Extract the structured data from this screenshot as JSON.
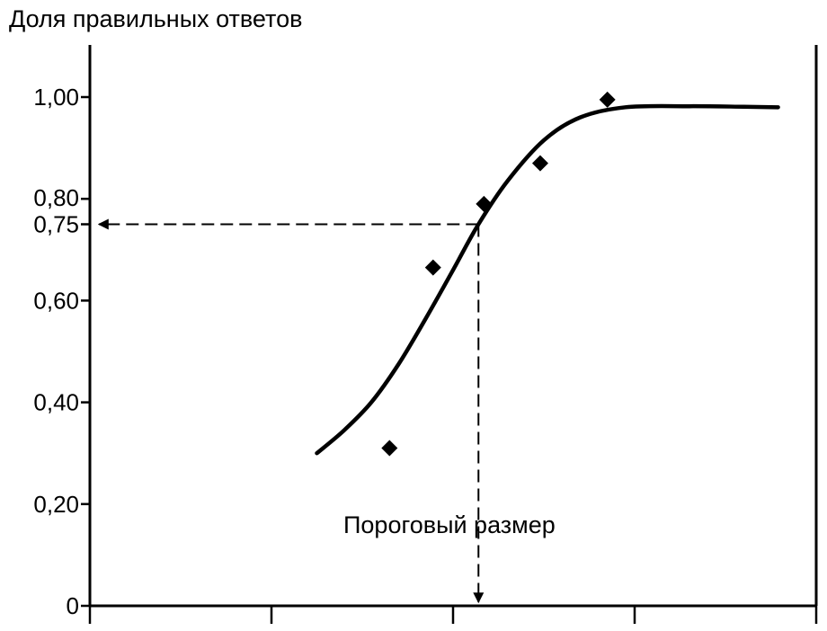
{
  "chart_data": {
    "type": "scatter",
    "title": "Доля правильных ответов",
    "xlabel": "",
    "ylabel": "",
    "ylim": [
      0,
      1.09
    ],
    "xlim": [
      0,
      4
    ],
    "y_ticks": [
      {
        "value": 0,
        "label": "0"
      },
      {
        "value": 0.2,
        "label": "0,20"
      },
      {
        "value": 0.4,
        "label": "0,40"
      },
      {
        "value": 0.6,
        "label": "0,60"
      },
      {
        "value": 0.75,
        "label": "0,75"
      },
      {
        "value": 0.8,
        "label": "0,80"
      },
      {
        "value": 1.0,
        "label": "1,00"
      }
    ],
    "x_ticks": [
      0,
      1,
      2,
      3,
      4
    ],
    "grid": false,
    "series": [
      {
        "kind": "points",
        "points": [
          {
            "x": 1.65,
            "y": 0.31
          },
          {
            "x": 1.89,
            "y": 0.665
          },
          {
            "x": 2.17,
            "y": 0.79
          },
          {
            "x": 2.48,
            "y": 0.87
          },
          {
            "x": 2.85,
            "y": 0.995
          }
        ]
      },
      {
        "kind": "fit-curve",
        "points": [
          {
            "x": 1.25,
            "y": 0.3
          },
          {
            "x": 1.4,
            "y": 0.345
          },
          {
            "x": 1.55,
            "y": 0.4
          },
          {
            "x": 1.7,
            "y": 0.475
          },
          {
            "x": 1.85,
            "y": 0.565
          },
          {
            "x": 2.0,
            "y": 0.66
          },
          {
            "x": 2.14,
            "y": 0.75
          },
          {
            "x": 2.3,
            "y": 0.835
          },
          {
            "x": 2.5,
            "y": 0.915
          },
          {
            "x": 2.7,
            "y": 0.96
          },
          {
            "x": 2.95,
            "y": 0.98
          },
          {
            "x": 3.3,
            "y": 0.982
          },
          {
            "x": 3.6,
            "y": 0.981
          },
          {
            "x": 3.79,
            "y": 0.98
          }
        ]
      }
    ],
    "threshold": {
      "x": 2.14,
      "y": 0.75
    },
    "annotation": "Пороговый размер"
  }
}
